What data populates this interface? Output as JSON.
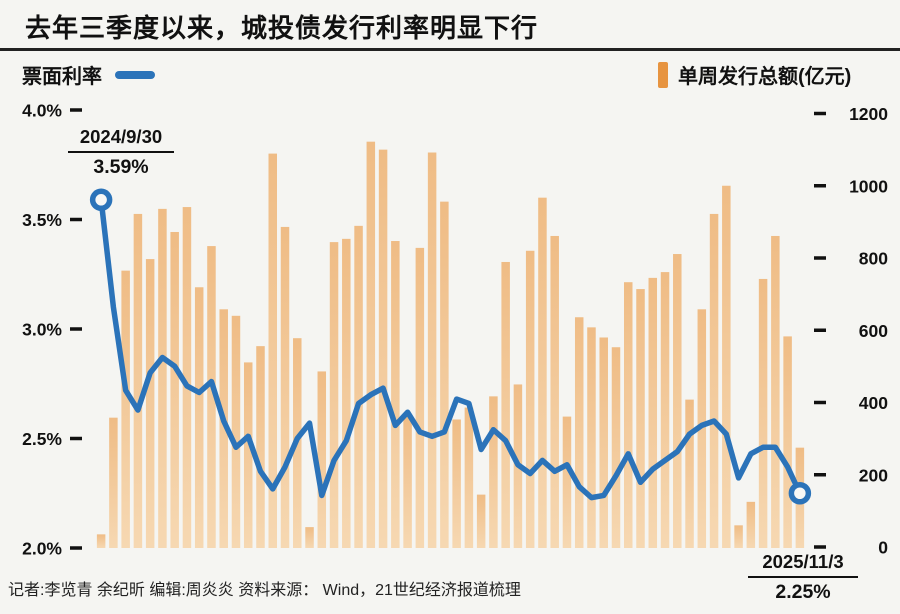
{
  "title": "去年三季度以来，城投债发行利率明显下行",
  "legend": {
    "line_label": "票面利率",
    "bar_label": "单周发行总额(亿元)"
  },
  "annotations": {
    "start": {
      "date": "2024/9/30",
      "value": "3.59%"
    },
    "end": {
      "date": "2025/11/3",
      "value": "2.25%"
    }
  },
  "footer": "记者:李览青 余纪昕  编辑:周炎炎  资料来源： Wind，21世纪经济报道梳理",
  "colors": {
    "line": "#2b73b9",
    "marker_fill": "#f7f7f5",
    "bar_top": "#efbc85",
    "bar_bottom": "#f6d8b2",
    "legend_bar": "#e79440",
    "text": "#111111",
    "background": "#f5f5f2"
  },
  "chart_data": {
    "type": "combo",
    "x_unit": "week",
    "x_range": [
      "2024/9/30",
      "2025/11/3"
    ],
    "series": [
      {
        "name": "票面利率",
        "type": "line",
        "axis": "left",
        "unit": "%",
        "values": [
          3.59,
          3.1,
          2.72,
          2.63,
          2.8,
          2.87,
          2.83,
          2.74,
          2.71,
          2.76,
          2.58,
          2.46,
          2.51,
          2.35,
          2.27,
          2.37,
          2.5,
          2.57,
          2.24,
          2.4,
          2.49,
          2.66,
          2.7,
          2.73,
          2.56,
          2.62,
          2.53,
          2.51,
          2.53,
          2.68,
          2.66,
          2.45,
          2.54,
          2.49,
          2.38,
          2.34,
          2.4,
          2.35,
          2.38,
          2.28,
          2.23,
          2.24,
          2.33,
          2.43,
          2.3,
          2.36,
          2.4,
          2.44,
          2.52,
          2.56,
          2.58,
          2.52,
          2.32,
          2.43,
          2.46,
          2.46,
          2.37,
          2.25
        ]
      },
      {
        "name": "单周发行总额(亿元)",
        "type": "bar",
        "axis": "right",
        "unit": "亿元",
        "values": [
          35,
          358,
          765,
          922,
          797,
          936,
          872,
          941,
          719,
          833,
          658,
          640,
          511,
          556,
          1089,
          886,
          578,
          55,
          486,
          844,
          853,
          889,
          1122,
          1100,
          847,
          367,
          828,
          1092,
          956,
          353,
          386,
          145,
          417,
          789,
          450,
          820,
          967,
          861,
          361,
          636,
          608,
          580,
          553,
          733,
          714,
          745,
          761,
          811,
          408,
          658,
          922,
          1000,
          60,
          125,
          742,
          861,
          583,
          275
        ]
      }
    ],
    "left_axis": {
      "title": "票面利率",
      "min": 2.0,
      "max": 4.0,
      "ticks": [
        "4.0%",
        "3.5%",
        "3.0%",
        "2.5%",
        "2.0%"
      ]
    },
    "right_axis": {
      "title": "单周发行总额(亿元)",
      "min": 0,
      "max": 1200,
      "ticks": [
        1200,
        1000,
        800,
        600,
        400,
        200,
        0
      ]
    },
    "grid": false,
    "legend_position": "top",
    "point_annotations": [
      {
        "index": 0,
        "label": "2024/9/30",
        "value": "3.59%"
      },
      {
        "index": 57,
        "label": "2025/11/3",
        "value": "2.25%"
      }
    ]
  }
}
